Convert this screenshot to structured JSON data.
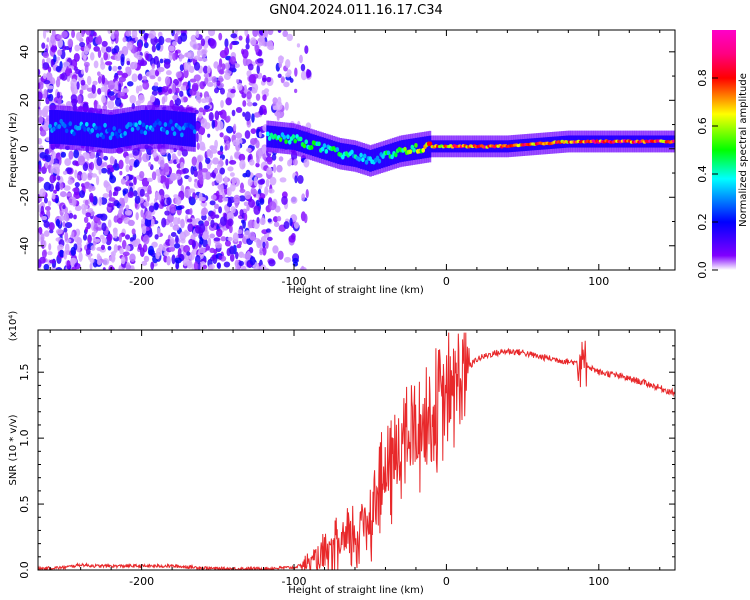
{
  "title": "GN04.2024.011.16.17.C34",
  "colors": {
    "spectrum_scale": [
      "#ff00ff",
      "#ff0080",
      "#ff0000",
      "#ffff00",
      "#00ff00",
      "#00ffff",
      "#0000ff",
      "#8000ff",
      "#ffffff"
    ],
    "snr_line": "#e8282a"
  },
  "chart_data": [
    {
      "type": "heatmap",
      "name": "spectrogram",
      "xlabel": "Height of straight line (km)",
      "ylabel": "Frequency (Hz)",
      "xlim": [
        -268,
        150
      ],
      "ylim": [
        -50,
        49
      ],
      "xticks": [
        -200,
        -100,
        0,
        100
      ],
      "xtick_labels": [
        "-200",
        "-100",
        "0",
        "100"
      ],
      "yticks": [
        -40,
        -20,
        0,
        20,
        40
      ],
      "ytick_labels": [
        "-40",
        "-20",
        "0",
        "20",
        "40"
      ],
      "colorbar": {
        "label": "Normalized spectral amplitude",
        "range": [
          0,
          1
        ],
        "ticks": [
          0.0,
          0.2,
          0.4,
          0.6,
          0.8
        ],
        "tick_labels": [
          "0.0",
          "0.2",
          "0.4",
          "0.6",
          "0.8"
        ]
      },
      "ridge": {
        "x": [
          -255,
          -235,
          -220,
          -200,
          -185,
          -170,
          -115,
          -100,
          -90,
          -80,
          -70,
          -60,
          -50,
          -40,
          -30,
          -20,
          -10,
          0,
          20,
          40,
          60,
          80,
          100,
          120,
          150
        ],
        "frequency": [
          9,
          8,
          7,
          9,
          9,
          8,
          5,
          4,
          2,
          0,
          -2,
          -3,
          -5,
          -3,
          -1,
          0,
          1,
          1,
          1,
          1,
          2,
          3,
          3,
          3,
          3
        ],
        "amplitude": [
          0.3,
          0.35,
          0.3,
          0.35,
          0.3,
          0.3,
          0.45,
          0.5,
          0.5,
          0.45,
          0.45,
          0.4,
          0.4,
          0.45,
          0.5,
          0.6,
          0.75,
          0.8,
          0.85,
          0.9,
          0.85,
          0.85,
          0.85,
          0.9,
          0.85
        ]
      }
    },
    {
      "type": "line",
      "name": "snr",
      "xlabel": "Height of straight line (km)",
      "ylabel": "SNR (10 * v/v)",
      "y_scale_label": "(x10⁴)",
      "xlim": [
        -268,
        150
      ],
      "ylim": [
        0,
        1.82
      ],
      "xticks": [
        -200,
        -100,
        0,
        100
      ],
      "xtick_labels": [
        "-200",
        "-100",
        "0",
        "100"
      ],
      "yticks": [
        0,
        0.5,
        1.0,
        1.5
      ],
      "ytick_labels": [
        "0.0",
        "0.5",
        "1.0",
        "1.5"
      ],
      "x": [
        -268,
        -250,
        -240,
        -230,
        -200,
        -180,
        -150,
        -120,
        -100,
        -90,
        -80,
        -70,
        -60,
        -50,
        -40,
        -30,
        -20,
        -10,
        0,
        10,
        20,
        30,
        40,
        50,
        60,
        70,
        80,
        90,
        100,
        110,
        120,
        130,
        140,
        150
      ],
      "y": [
        0.01,
        0.02,
        0.04,
        0.03,
        0.03,
        0.03,
        0.01,
        0.01,
        0.02,
        0.05,
        0.1,
        0.18,
        0.25,
        0.45,
        0.7,
        0.95,
        1.05,
        1.15,
        1.3,
        1.48,
        1.6,
        1.64,
        1.66,
        1.65,
        1.62,
        1.6,
        1.58,
        1.57,
        1.5,
        1.48,
        1.45,
        1.42,
        1.38,
        1.34
      ]
    }
  ]
}
